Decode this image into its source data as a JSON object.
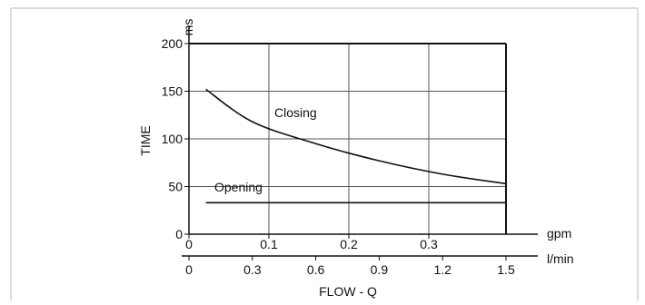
{
  "chart_data": {
    "type": "line",
    "xlabel": "FLOW - Q",
    "ylabel": "TIME",
    "y_unit": "ms",
    "x_unit_primary": "gpm",
    "x_unit_secondary": "l/min",
    "xlim_lmin": [
      0,
      1.5
    ],
    "xlim_gpm": [
      0,
      0.4
    ],
    "ylim": [
      0,
      200
    ],
    "x_ticks_lmin": [
      "0",
      "0.3",
      "0.6",
      "0.9",
      "1.2",
      "1.5"
    ],
    "x_ticks_gpm": [
      "0",
      "0.1",
      "0.2",
      "0.3"
    ],
    "y_ticks": [
      "0",
      "50",
      "100",
      "150",
      "200"
    ],
    "grid": true,
    "series": [
      {
        "name": "Closing",
        "x": [
          0.08,
          0.3,
          0.6,
          0.9,
          1.2,
          1.5
        ],
        "y": [
          152,
          118,
          95,
          77,
          63,
          53
        ]
      },
      {
        "name": "Opening",
        "x": [
          0.08,
          1.5
        ],
        "y": [
          33,
          33
        ]
      }
    ]
  },
  "colors": {
    "line": "#111111",
    "grid": "#555555",
    "frame": "#bbbbbb"
  }
}
